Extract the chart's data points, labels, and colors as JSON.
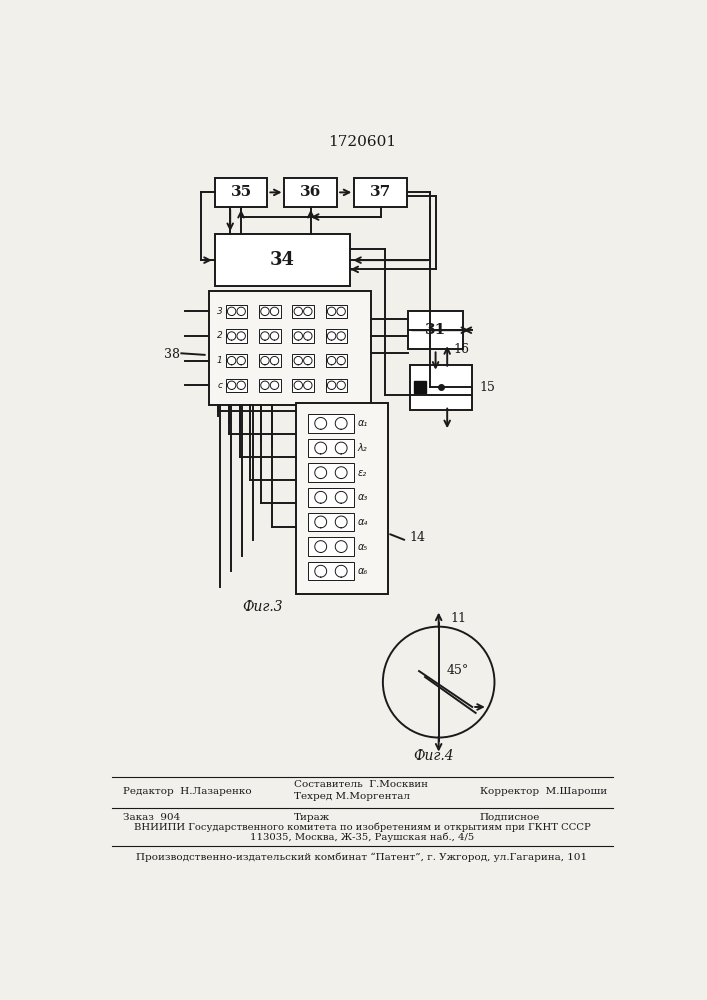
{
  "title": "1720601",
  "fig3_label": "Фиг.3",
  "fig4_label": "Фиг.4",
  "bg_color": "#f2f0eb",
  "line_color": "#1a1a1a",
  "footer_editor": "Редактор  Н.Лазаренко",
  "footer_author": "Составитель  Г.Москвин",
  "footer_tech": "Техред М.Моргентал",
  "footer_corr": "Корректор  М.Шароши",
  "footer_order": "Заказ  904",
  "footer_print": "Тираж",
  "footer_sub": "Подписное",
  "footer_vniip": "ВНИИПИ Государственного комитета по изобретениям и открытиям при ГКНТ СССР",
  "footer_addr": "113035, Москва, Ж-35, Раушская наб., 4/5",
  "footer_patent": "Производственно-издательский комбинат “Патент”, г. Ужгород, ул.Гагарина, 101"
}
